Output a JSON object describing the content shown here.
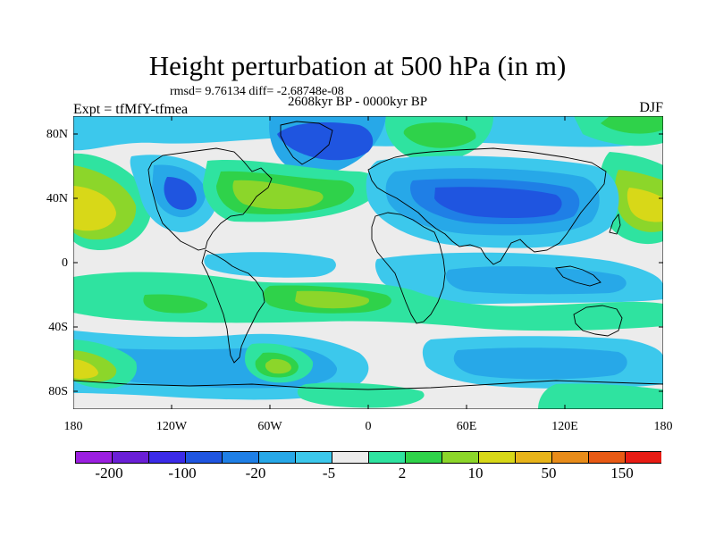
{
  "header": {
    "title": "Height perturbation at 500 hPa (in m)",
    "stats": "rmsd= 9.76134  diff= -2.68748e-08",
    "period": "2608kyr BP - 0000kyr BP",
    "experiment": "Expt = tfMfY-tfmea",
    "season": "DJF"
  },
  "axes": {
    "y_ticks": [
      "80N",
      "40N",
      "0",
      "40S",
      "80S"
    ],
    "x_ticks": [
      "180",
      "120W",
      "60W",
      "0",
      "60E",
      "120E",
      "180"
    ]
  },
  "colorbar": {
    "labels": [
      "-200",
      "-100",
      "-20",
      "-5",
      "2",
      "10",
      "50",
      "150"
    ],
    "colors": [
      "#9b1fe0",
      "#6a1fd6",
      "#3b2be8",
      "#1f55e0",
      "#1f7fe6",
      "#27a8e8",
      "#3cc8ec",
      "#ececec",
      "#2fe3a0",
      "#2fd24a",
      "#8cd62a",
      "#d8d818",
      "#e8b41a",
      "#e88c1a",
      "#e85a14",
      "#e81c14"
    ]
  },
  "palette": {
    "bg": "#ececec",
    "cyan": "#3cc8ec",
    "sky": "#27a8e8",
    "blue": "#1f7fe6",
    "dblue": "#1f55e0",
    "teal": "#2fe3a0",
    "green": "#2fd24a",
    "lgreen": "#8cd62a",
    "yellow": "#d8d818",
    "orange": "#e8b41a"
  }
}
